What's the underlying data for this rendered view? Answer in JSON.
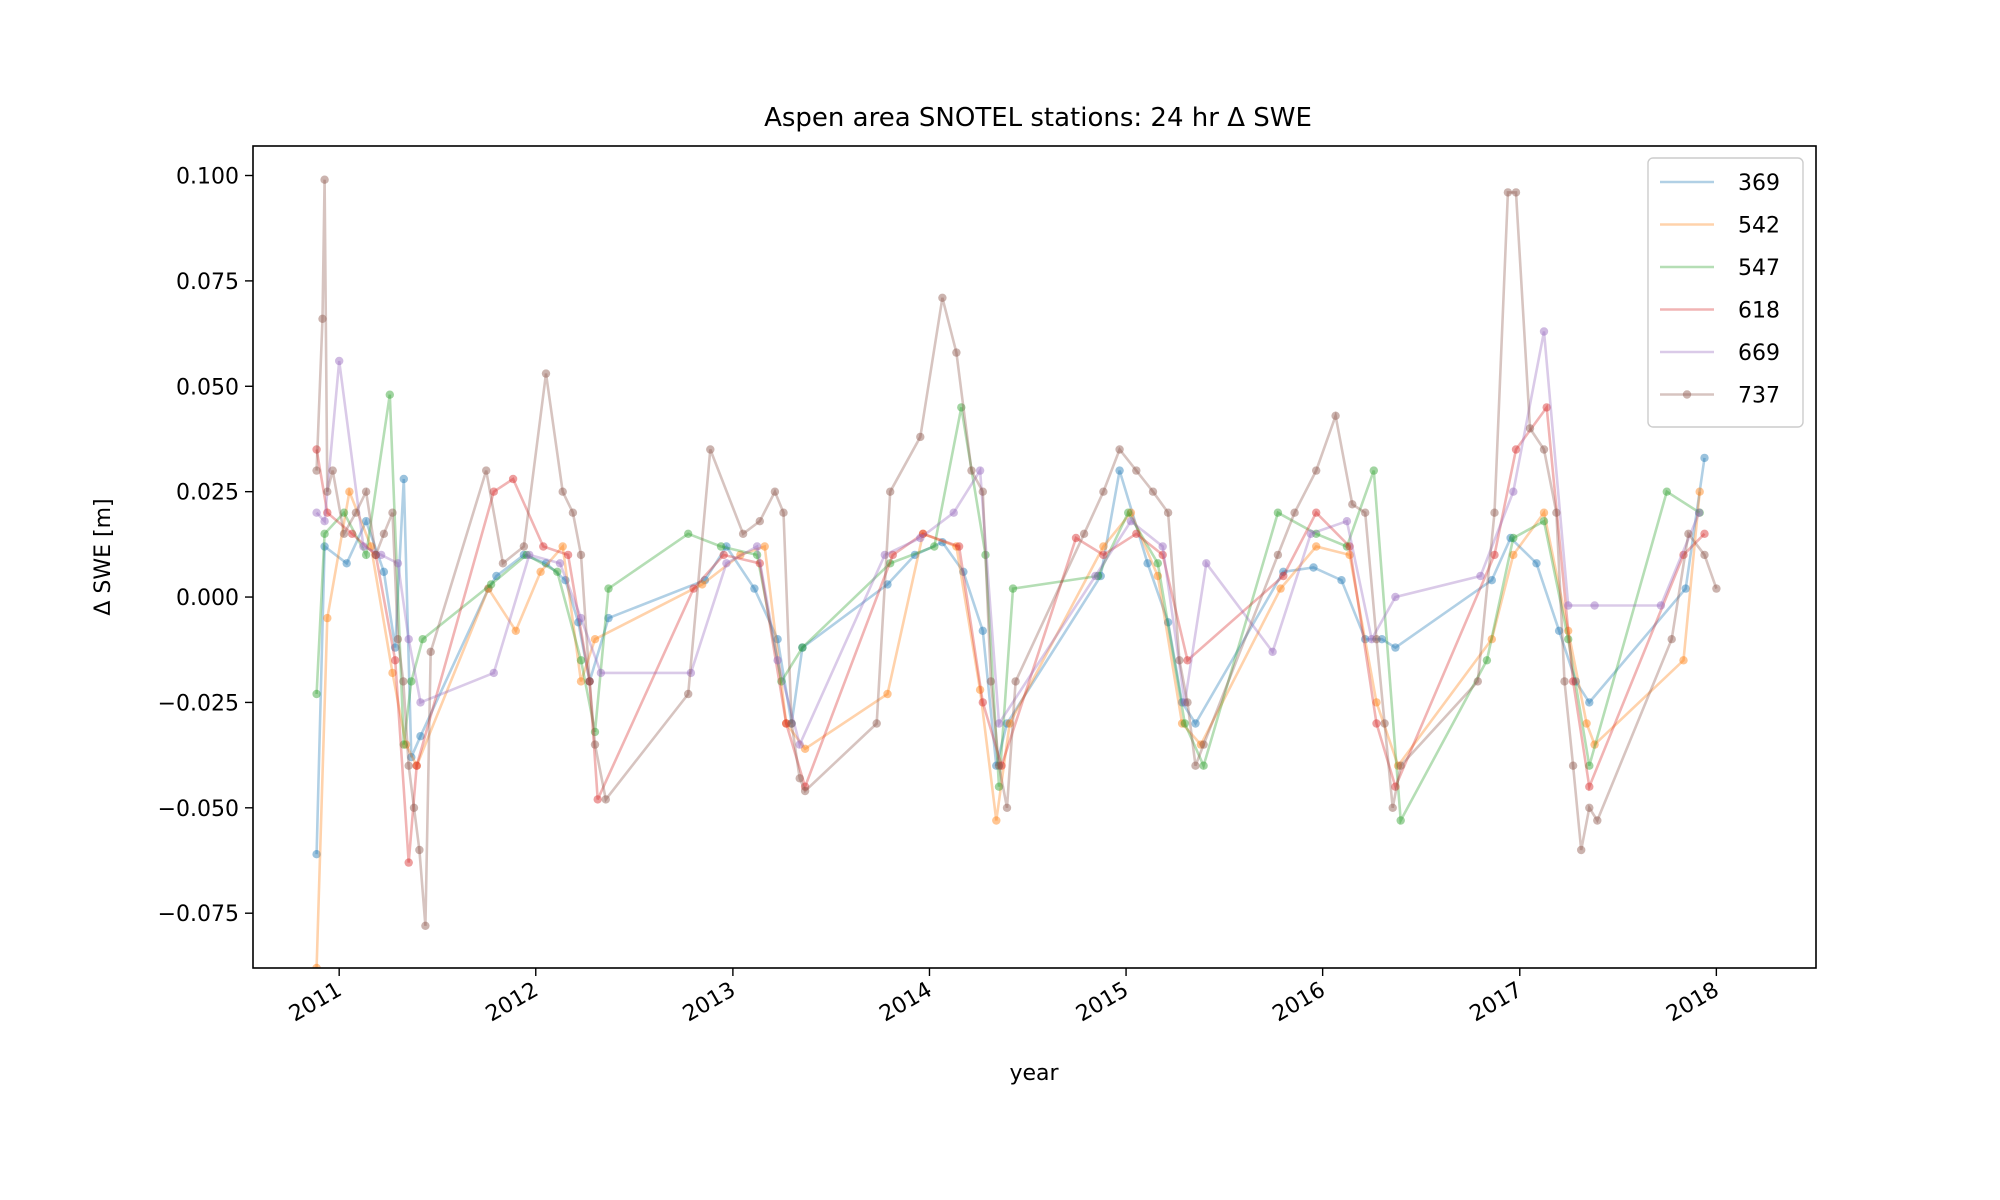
{
  "chart_data": {
    "type": "line",
    "title": "Aspen area SNOTEL stations: 24 hr Δ SWE",
    "xlabel": "year",
    "ylabel": "Δ SWE [m]",
    "xlim": [
      "2010-07-25",
      "2018-07-05"
    ],
    "ylim": [
      -0.088,
      0.107
    ],
    "x_ticks": [
      "2011",
      "2012",
      "2013",
      "2014",
      "2015",
      "2016",
      "2017",
      "2018"
    ],
    "y_ticks": [
      "0.100",
      "0.075",
      "0.050",
      "0.025",
      "0.000",
      "−0.025",
      "−0.050",
      "−0.075"
    ],
    "grid": false,
    "legend_position": "top-right",
    "series": [
      {
        "name": "369",
        "color": "#1f77b4",
        "x": [
          "2010-11-20",
          "2010-12-05",
          "2011-01-15",
          "2011-02-20",
          "2011-03-25",
          "2011-04-15",
          "2011-05-01",
          "2011-05-15",
          "2011-06-01",
          "2011-10-05",
          "2011-10-20",
          "2011-12-10",
          "2012-01-20",
          "2012-02-25",
          "2012-03-20",
          "2012-04-10",
          "2012-05-15",
          "2012-11-10",
          "2012-12-20",
          "2013-02-10",
          "2013-03-25",
          "2013-04-20",
          "2013-05-10",
          "2013-10-15",
          "2013-12-05",
          "2014-01-25",
          "2014-03-05",
          "2014-04-10",
          "2014-05-05",
          "2014-05-25",
          "2014-11-15",
          "2014-12-20",
          "2015-02-10",
          "2015-03-20",
          "2015-04-15",
          "2015-05-10",
          "2015-10-20",
          "2015-12-15",
          "2016-02-05",
          "2016-03-20",
          "2016-04-20",
          "2016-05-15",
          "2016-11-10",
          "2016-12-15",
          "2017-02-01",
          "2017-03-15",
          "2017-04-15",
          "2017-05-10",
          "2017-11-05",
          "2017-12-10"
        ],
        "y": [
          -0.061,
          0.012,
          0.008,
          0.018,
          0.006,
          -0.012,
          0.028,
          -0.038,
          -0.033,
          0.002,
          0.005,
          0.01,
          0.008,
          0.004,
          -0.006,
          -0.02,
          -0.005,
          0.004,
          0.012,
          0.002,
          -0.01,
          -0.03,
          -0.012,
          0.003,
          0.01,
          0.013,
          0.006,
          -0.008,
          -0.04,
          -0.03,
          0.005,
          0.03,
          0.008,
          -0.006,
          -0.025,
          -0.03,
          0.006,
          0.007,
          0.004,
          -0.01,
          -0.01,
          -0.012,
          0.004,
          0.014,
          0.008,
          -0.008,
          -0.02,
          -0.025,
          0.002,
          0.033
        ]
      },
      {
        "name": "542",
        "color": "#ff7f0e",
        "x": [
          "2010-11-20",
          "2010-12-10",
          "2011-01-20",
          "2011-03-01",
          "2011-04-10",
          "2011-05-05",
          "2011-05-25",
          "2011-10-05",
          "2011-11-25",
          "2012-01-10",
          "2012-02-20",
          "2012-03-25",
          "2012-04-20",
          "2012-11-05",
          "2013-01-15",
          "2013-03-01",
          "2013-04-10",
          "2013-05-15",
          "2013-10-15",
          "2013-12-20",
          "2014-02-20",
          "2014-04-05",
          "2014-05-05",
          "2014-05-30",
          "2014-11-20",
          "2015-01-10",
          "2015-03-01",
          "2015-04-15",
          "2015-05-20",
          "2015-10-15",
          "2015-12-20",
          "2016-02-20",
          "2016-04-10",
          "2016-05-20",
          "2016-11-10",
          "2016-12-20",
          "2017-02-15",
          "2017-04-01",
          "2017-05-05",
          "2017-05-20",
          "2017-11-01",
          "2017-12-01"
        ],
        "y": [
          -0.088,
          -0.005,
          0.025,
          0.012,
          -0.018,
          -0.035,
          -0.04,
          0.002,
          -0.008,
          0.006,
          0.012,
          -0.02,
          -0.01,
          0.003,
          0.01,
          0.012,
          -0.03,
          -0.036,
          -0.023,
          0.015,
          0.012,
          -0.022,
          -0.053,
          -0.03,
          0.012,
          0.02,
          0.005,
          -0.03,
          -0.035,
          0.002,
          0.012,
          0.01,
          -0.025,
          -0.04,
          -0.01,
          0.01,
          0.02,
          -0.008,
          -0.03,
          -0.035,
          -0.015,
          0.025
        ]
      },
      {
        "name": "547",
        "color": "#2ca02c",
        "x": [
          "2010-11-20",
          "2010-12-05",
          "2011-01-10",
          "2011-02-20",
          "2011-04-05",
          "2011-05-01",
          "2011-05-15",
          "2011-06-05",
          "2011-10-10",
          "2011-12-15",
          "2012-02-10",
          "2012-03-25",
          "2012-04-20",
          "2012-05-15",
          "2012-10-10",
          "2012-12-10",
          "2013-02-15",
          "2013-04-01",
          "2013-05-10",
          "2013-10-20",
          "2014-01-10",
          "2014-03-01",
          "2014-04-15",
          "2014-05-10",
          "2014-06-05",
          "2014-11-10",
          "2015-01-05",
          "2015-03-01",
          "2015-04-20",
          "2015-05-25",
          "2015-10-10",
          "2015-12-20",
          "2016-02-15",
          "2016-04-05",
          "2016-05-25",
          "2016-11-01",
          "2016-12-20",
          "2017-02-15",
          "2017-04-01",
          "2017-05-10",
          "2017-10-01",
          "2017-12-01"
        ],
        "y": [
          -0.023,
          0.015,
          0.02,
          0.01,
          0.048,
          -0.035,
          -0.02,
          -0.01,
          0.003,
          0.01,
          0.006,
          -0.015,
          -0.032,
          0.002,
          0.015,
          0.012,
          0.01,
          -0.02,
          -0.012,
          0.008,
          0.012,
          0.045,
          0.01,
          -0.045,
          0.002,
          0.005,
          0.02,
          0.008,
          -0.03,
          -0.04,
          0.02,
          0.015,
          0.012,
          0.03,
          -0.053,
          -0.015,
          0.014,
          0.018,
          -0.01,
          -0.04,
          0.025,
          0.02
        ]
      },
      {
        "name": "618",
        "color": "#d62728",
        "x": [
          "2010-11-20",
          "2010-12-10",
          "2011-01-25",
          "2011-03-10",
          "2011-04-15",
          "2011-05-10",
          "2011-05-25",
          "2011-10-15",
          "2011-11-20",
          "2012-01-15",
          "2012-03-01",
          "2012-04-10",
          "2012-04-25",
          "2012-10-20",
          "2012-12-15",
          "2013-02-20",
          "2013-04-10",
          "2013-05-15",
          "2013-10-25",
          "2013-12-20",
          "2014-02-25",
          "2014-04-10",
          "2014-05-15",
          "2014-09-30",
          "2014-11-20",
          "2015-01-20",
          "2015-03-10",
          "2015-04-25",
          "2015-10-20",
          "2015-12-20",
          "2016-02-20",
          "2016-04-10",
          "2016-05-15",
          "2016-11-15",
          "2016-12-25",
          "2017-02-20",
          "2017-04-10",
          "2017-05-10",
          "2017-11-01",
          "2017-12-10"
        ],
        "y": [
          0.035,
          0.02,
          0.015,
          0.01,
          -0.015,
          -0.063,
          -0.04,
          0.025,
          0.028,
          0.012,
          0.01,
          -0.02,
          -0.048,
          0.002,
          0.01,
          0.008,
          -0.03,
          -0.045,
          0.01,
          0.015,
          0.012,
          -0.025,
          -0.04,
          0.014,
          0.01,
          0.015,
          0.01,
          -0.015,
          0.005,
          0.02,
          0.012,
          -0.03,
          -0.045,
          0.01,
          0.035,
          0.045,
          -0.02,
          -0.045,
          0.01,
          0.015
        ]
      },
      {
        "name": "669",
        "color": "#9467bd",
        "x": [
          "2010-11-20",
          "2010-12-05",
          "2011-01-01",
          "2011-02-15",
          "2011-03-20",
          "2011-04-20",
          "2011-05-10",
          "2011-06-01",
          "2011-10-15",
          "2011-12-20",
          "2012-02-15",
          "2012-03-25",
          "2012-05-01",
          "2012-10-15",
          "2012-12-20",
          "2013-02-15",
          "2013-03-25",
          "2013-05-05",
          "2013-10-10",
          "2013-12-15",
          "2014-02-15",
          "2014-04-05",
          "2014-05-10",
          "2014-11-05",
          "2015-01-10",
          "2015-03-10",
          "2015-04-20",
          "2015-05-30",
          "2015-09-30",
          "2015-12-10",
          "2016-02-15",
          "2016-04-01",
          "2016-05-15",
          "2016-10-20",
          "2016-12-20",
          "2017-02-15",
          "2017-04-01",
          "2017-05-20",
          "2017-09-20",
          "2017-11-30"
        ],
        "y": [
          0.02,
          0.018,
          0.056,
          0.012,
          0.01,
          0.008,
          -0.01,
          -0.025,
          -0.018,
          0.01,
          0.008,
          -0.005,
          -0.018,
          -0.018,
          0.008,
          0.012,
          -0.015,
          -0.035,
          0.01,
          0.014,
          0.02,
          0.03,
          -0.03,
          0.005,
          0.018,
          0.012,
          -0.025,
          0.008,
          -0.013,
          0.015,
          0.018,
          -0.01,
          0.0,
          0.005,
          0.025,
          0.063,
          -0.002,
          -0.002,
          -0.002,
          0.02
        ]
      },
      {
        "name": "737",
        "color": "#8c564b",
        "x": [
          "2010-11-20",
          "2010-12-01",
          "2010-12-05",
          "2010-12-10",
          "2010-12-20",
          "2011-01-10",
          "2011-02-01",
          "2011-02-20",
          "2011-03-10",
          "2011-03-25",
          "2011-04-10",
          "2011-04-20",
          "2011-04-30",
          "2011-05-10",
          "2011-05-20",
          "2011-05-30",
          "2011-06-10",
          "2011-06-20",
          "2011-10-01",
          "2011-11-01",
          "2011-12-10",
          "2012-01-20",
          "2012-02-20",
          "2012-03-10",
          "2012-03-25",
          "2012-04-10",
          "2012-04-20",
          "2012-05-10",
          "2012-10-10",
          "2012-11-20",
          "2013-01-20",
          "2013-02-20",
          "2013-03-20",
          "2013-04-05",
          "2013-04-20",
          "2013-05-05",
          "2013-05-15",
          "2013-09-25",
          "2013-10-20",
          "2013-12-15",
          "2014-01-25",
          "2014-02-20",
          "2014-03-20",
          "2014-04-10",
          "2014-04-25",
          "2014-05-10",
          "2014-05-25",
          "2014-06-10",
          "2014-10-15",
          "2014-11-20",
          "2014-12-20",
          "2015-01-20",
          "2015-02-20",
          "2015-03-20",
          "2015-04-10",
          "2015-04-25",
          "2015-05-10",
          "2015-05-25",
          "2015-10-10",
          "2015-11-10",
          "2015-12-20",
          "2016-01-25",
          "2016-02-25",
          "2016-03-20",
          "2016-04-10",
          "2016-04-25",
          "2016-05-10",
          "2016-05-25",
          "2016-10-15",
          "2016-11-15",
          "2016-12-10",
          "2016-12-25",
          "2017-01-20",
          "2017-02-15",
          "2017-03-10",
          "2017-03-25",
          "2017-04-10",
          "2017-04-25",
          "2017-05-10",
          "2017-05-25",
          "2017-10-10",
          "2017-11-10",
          "2017-12-10",
          "2018-01-01"
        ],
        "y": [
          0.03,
          0.066,
          0.099,
          0.025,
          0.03,
          0.015,
          0.02,
          0.025,
          0.01,
          0.015,
          0.02,
          -0.01,
          -0.02,
          -0.04,
          -0.05,
          -0.06,
          -0.078,
          -0.013,
          0.03,
          0.008,
          0.012,
          0.053,
          0.025,
          0.02,
          0.01,
          -0.02,
          -0.035,
          -0.048,
          -0.023,
          0.035,
          0.015,
          0.018,
          0.025,
          0.02,
          -0.03,
          -0.043,
          -0.046,
          -0.03,
          0.025,
          0.038,
          0.071,
          0.058,
          0.03,
          0.025,
          -0.02,
          -0.04,
          -0.05,
          -0.02,
          0.015,
          0.025,
          0.035,
          0.03,
          0.025,
          0.02,
          -0.015,
          -0.025,
          -0.04,
          -0.035,
          0.01,
          0.02,
          0.03,
          0.043,
          0.022,
          0.02,
          -0.01,
          -0.03,
          -0.05,
          -0.04,
          -0.02,
          0.02,
          0.096,
          0.096,
          0.04,
          0.035,
          0.02,
          -0.02,
          -0.04,
          -0.06,
          -0.05,
          -0.053,
          -0.01,
          0.015,
          0.01,
          0.002
        ]
      }
    ]
  }
}
